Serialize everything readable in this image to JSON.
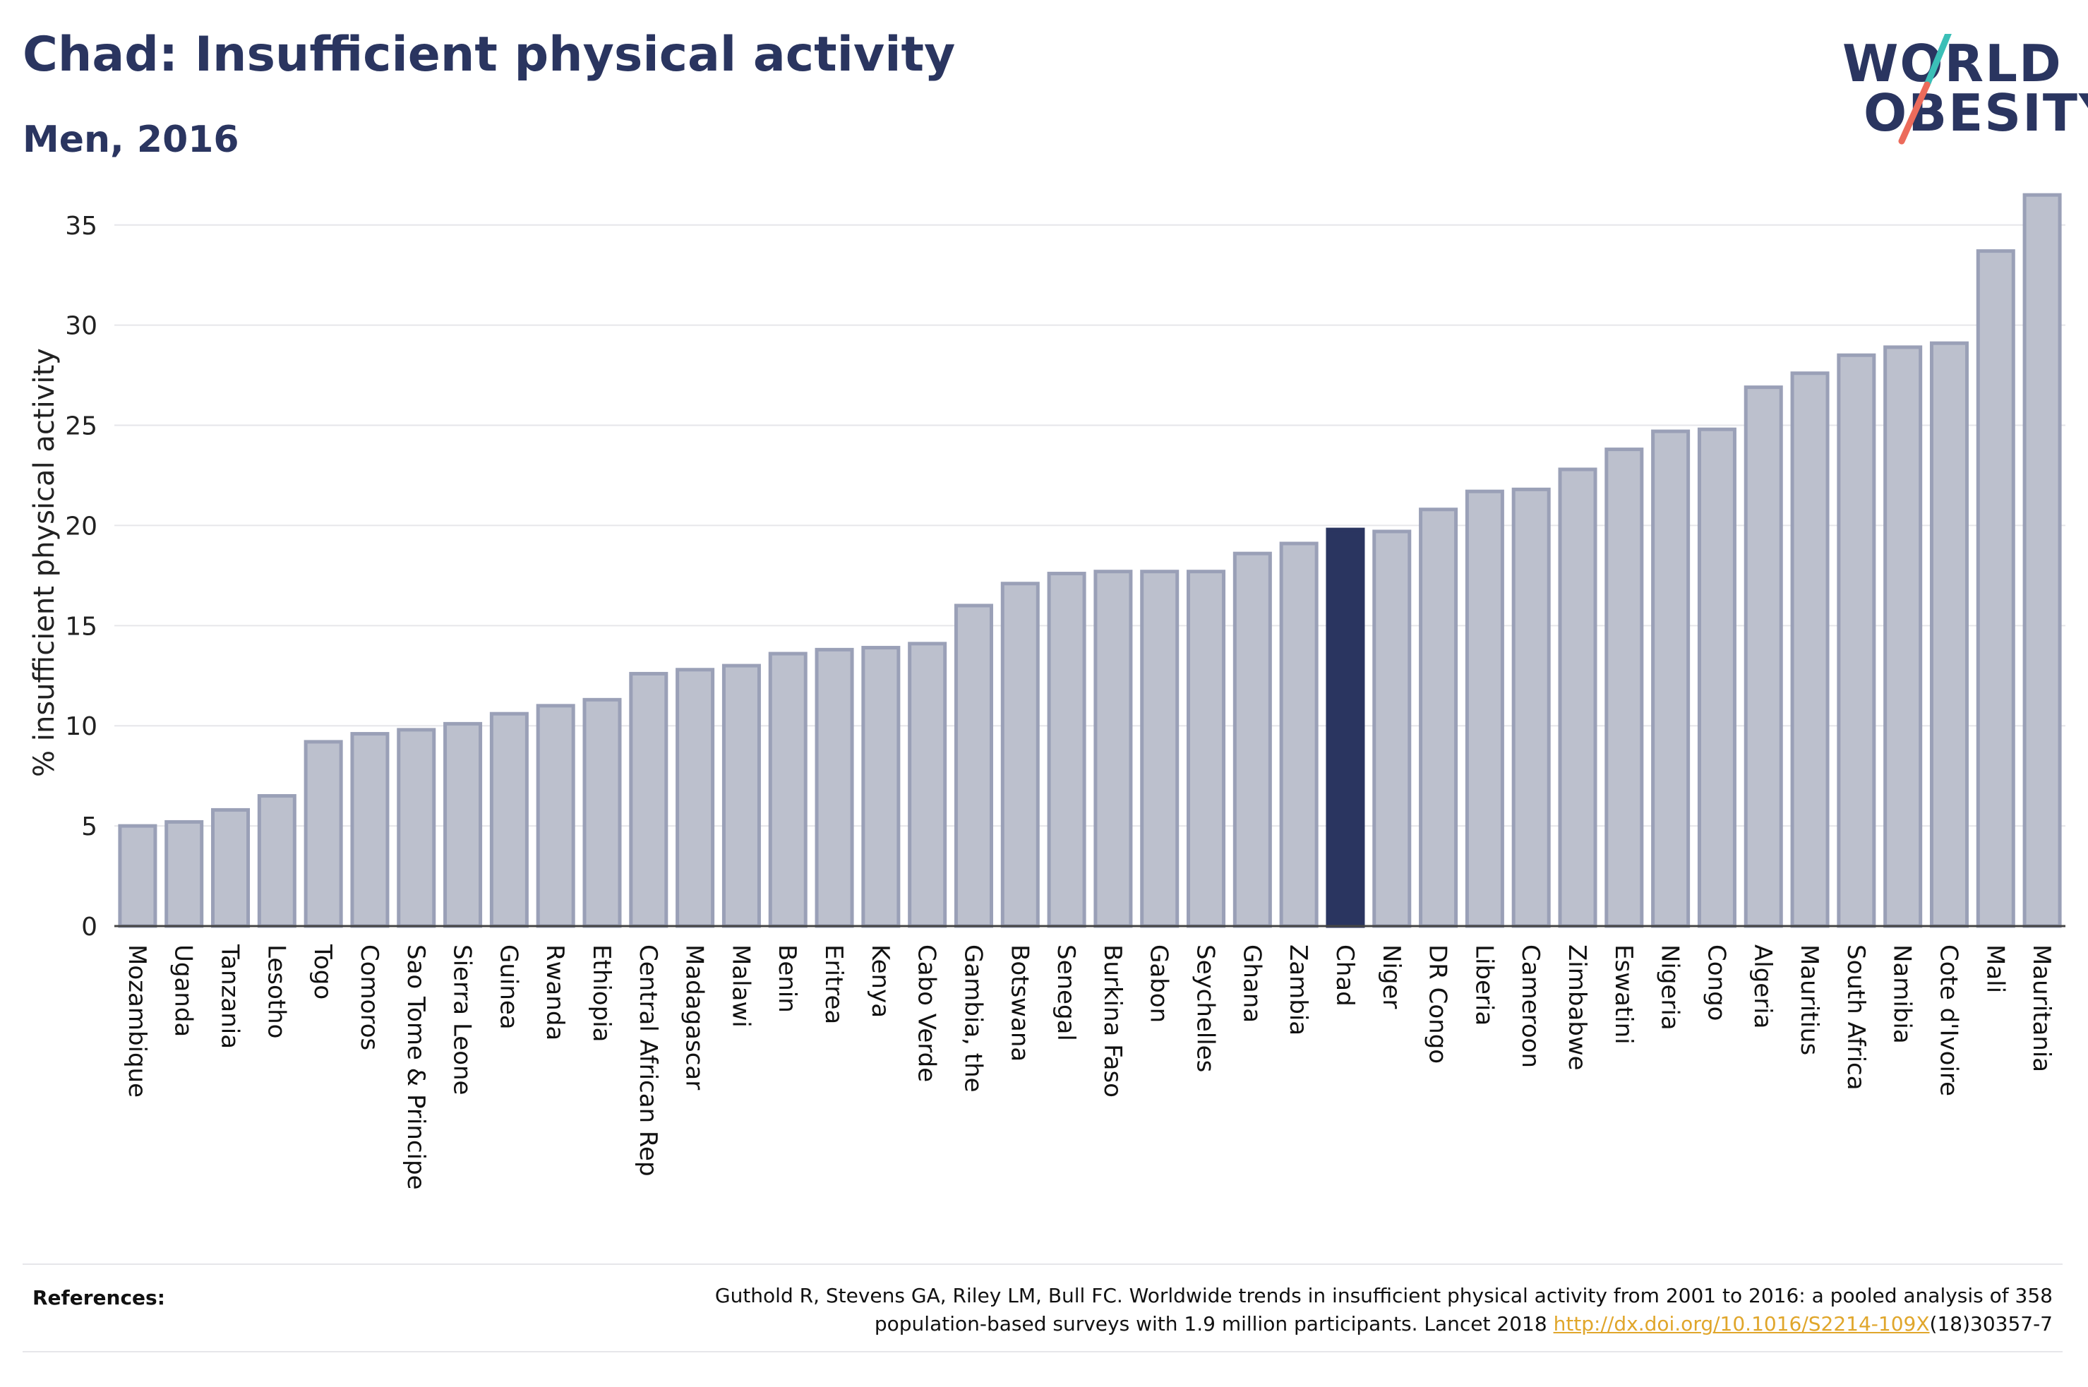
{
  "header": {
    "title": "Chad: Insufficient physical activity",
    "subtitle": "Men, 2016"
  },
  "logo": {
    "line1": "WORLD",
    "line2": "OBESITY",
    "colors": {
      "text": "#2a3560",
      "slash_top": "#3bbfb7",
      "slash_bottom": "#ec6b5b"
    }
  },
  "chart_data": {
    "type": "bar",
    "title": "Chad: Insufficient physical activity",
    "subtitle": "Men, 2016",
    "xlabel": "",
    "ylabel": "% insufficient physical activity",
    "ylim": [
      0,
      37
    ],
    "yticks": [
      0,
      5,
      10,
      15,
      20,
      25,
      30,
      35
    ],
    "grid": true,
    "highlight": "Chad",
    "colors": {
      "bar": "#bcc0cd",
      "bar_edge": "#9aa0b7",
      "highlight": "#2a3560",
      "grid": "#e6e6ea"
    },
    "categories": [
      "Mozambique",
      "Uganda",
      "Tanzania",
      "Lesotho",
      "Togo",
      "Comoros",
      "Sao Tome & Principe",
      "Sierra Leone",
      "Guinea",
      "Rwanda",
      "Ethiopia",
      "Central African Rep",
      "Madagascar",
      "Malawi",
      "Benin",
      "Eritrea",
      "Kenya",
      "Cabo Verde",
      "Gambia, the",
      "Botswana",
      "Senegal",
      "Burkina Faso",
      "Gabon",
      "Seychelles",
      "Ghana",
      "Zambia",
      "Chad",
      "Niger",
      "DR Congo",
      "Liberia",
      "Cameroon",
      "Zimbabwe",
      "Eswatini",
      "Nigeria",
      "Congo",
      "Algeria",
      "Mauritius",
      "South Africa",
      "Namibia",
      "Cote d'Ivoire",
      "Mali",
      "Mauritania"
    ],
    "values": [
      5.0,
      5.2,
      5.8,
      6.5,
      9.2,
      9.6,
      9.8,
      10.1,
      10.6,
      11.0,
      11.3,
      12.6,
      12.8,
      13.0,
      13.6,
      13.8,
      13.9,
      14.1,
      16.0,
      17.1,
      17.6,
      17.7,
      17.7,
      17.7,
      18.6,
      19.1,
      19.8,
      19.7,
      20.8,
      21.7,
      21.8,
      22.8,
      23.8,
      24.7,
      24.8,
      26.9,
      27.6,
      28.5,
      28.9,
      29.1,
      33.7,
      36.5
    ]
  },
  "references": {
    "label": "References:",
    "line1": "Guthold R, Stevens GA, Riley LM, Bull FC. Worldwide trends in insufficient physical activity from 2001 to 2016: a pooled analysis of 358",
    "line2_prefix": "population-based surveys with 1.9 million participants. Lancet 2018 ",
    "link_text": "http://dx.doi.org/10.1016/S2214-109X",
    "line2_suffix": "(18)30357-7"
  }
}
